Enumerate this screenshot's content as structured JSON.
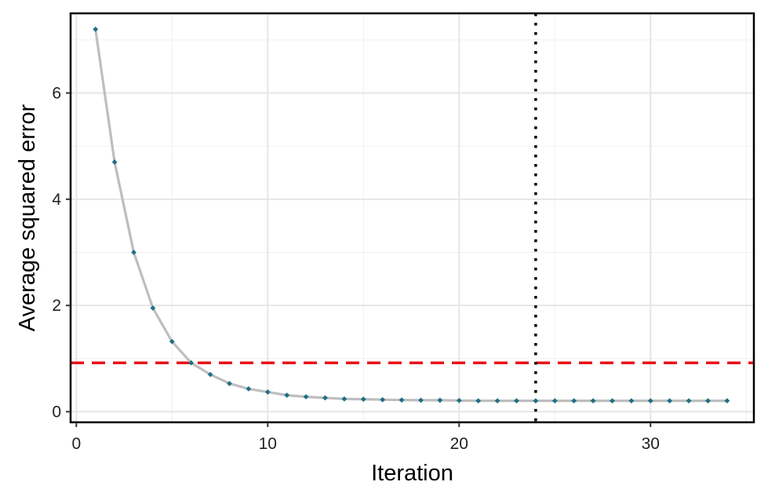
{
  "chart_data": {
    "type": "line",
    "title": "",
    "xlabel": "Iteration",
    "ylabel": "Average squared error",
    "xlim": [
      -0.3,
      35.4
    ],
    "ylim": [
      -0.2,
      7.5
    ],
    "x_ticks": [
      0,
      10,
      20,
      30
    ],
    "x_tick_labels": [
      "0",
      "10",
      "20",
      "30"
    ],
    "y_ticks": [
      0,
      2,
      4,
      6
    ],
    "y_tick_labels": [
      "0",
      "2",
      "4",
      "6"
    ],
    "grid": true,
    "legend": "none",
    "series": [
      {
        "x": [
          1,
          2,
          3,
          4,
          5,
          6,
          7,
          8,
          9,
          10,
          11,
          12,
          13,
          14,
          15,
          16,
          17,
          18,
          19,
          20,
          21,
          22,
          23,
          24,
          25,
          26,
          27,
          28,
          29,
          30,
          31,
          32,
          33,
          34
        ],
        "values": [
          7.2,
          4.7,
          3.0,
          1.95,
          1.32,
          0.92,
          0.7,
          0.53,
          0.43,
          0.37,
          0.31,
          0.28,
          0.26,
          0.24,
          0.235,
          0.225,
          0.22,
          0.215,
          0.215,
          0.21,
          0.205,
          0.205,
          0.205,
          0.205,
          0.205,
          0.205,
          0.205,
          0.205,
          0.205,
          0.205,
          0.205,
          0.205,
          0.205,
          0.205
        ],
        "line_color": "#bebebe",
        "point_color": "#1f6f86"
      }
    ],
    "reference_lines": [
      {
        "orientation": "horizontal",
        "value": 0.92,
        "style": "dashed",
        "color": "#e8141a"
      },
      {
        "orientation": "vertical",
        "value": 24,
        "style": "dotted",
        "color": "#000000"
      }
    ]
  }
}
